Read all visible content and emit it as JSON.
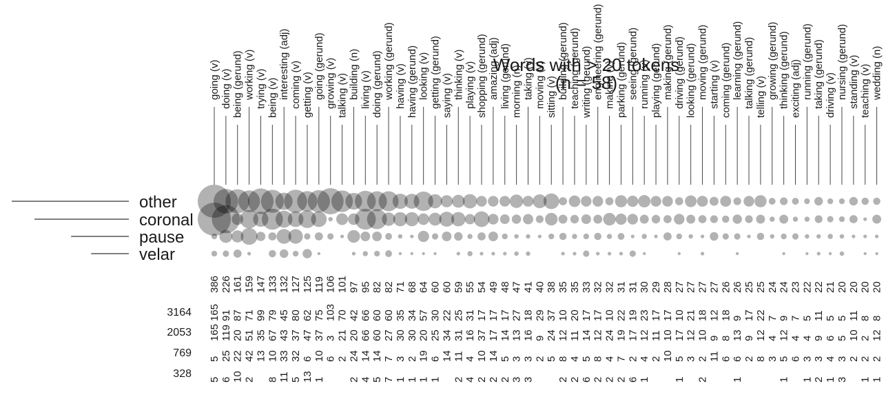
{
  "chart_data": {
    "type": "scatter",
    "subtype": "bubble-matrix",
    "title": "Words with > 20 tokens",
    "subtitle": "(n = 58)",
    "categories": [
      "going (v)",
      "doing (v)",
      "being (gerund)",
      "working (v)",
      "trying (v)",
      "being (v)",
      "interesting (adj)",
      "coming (v)",
      "getting (v)",
      "going (gerund)",
      "growing (v)",
      "talking (v)",
      "building (n)",
      "living (v)",
      "doing (gerund)",
      "working (gerund)",
      "having (v)",
      "having (gerund)",
      "looking (v)",
      "getting (gerund)",
      "saying (v)",
      "thinking (v)",
      "playing (v)",
      "shopping (gerund)",
      "amazing (adj)",
      "living (gerund)",
      "morning (n)",
      "taking (v)",
      "moving (v)",
      "sitting (v)",
      "building (gerund)",
      "teaching (gerund)",
      "writing (gerund)",
      "engineering (gerund)",
      "making (v)",
      "parking (gerund)",
      "seeing (gerund)",
      "running (v)",
      "playing (gerund)",
      "making (gerund)",
      "driving (gerund)",
      "looking (gerund)",
      "moving (gerund)",
      "starting (v)",
      "coming (gerund)",
      "learning (gerund)",
      "talking (gerund)",
      "telling (v)",
      "growing (gerund)",
      "thinking (gerund)",
      "exciting (adj)",
      "running (gerund)",
      "taking (gerund)",
      "driving (v)",
      "nursing (gerund)",
      "standing (v)",
      "teaching (v)",
      "wedding (n)"
    ],
    "totals": [
      386,
      226,
      161,
      159,
      147,
      133,
      132,
      127,
      125,
      119,
      106,
      101,
      97,
      95,
      82,
      82,
      71,
      68,
      64,
      60,
      60,
      59,
      55,
      54,
      49,
      48,
      47,
      41,
      40,
      38,
      35,
      35,
      33,
      32,
      32,
      31,
      31,
      30,
      29,
      28,
      27,
      27,
      27,
      27,
      26,
      26,
      25,
      25,
      24,
      24,
      23,
      22,
      22,
      21,
      20,
      20,
      20,
      20
    ],
    "contexts": [
      "other",
      "coronal",
      "pause",
      "velar"
    ],
    "context_totals": [
      3164,
      2053,
      769,
      328
    ],
    "series": [
      {
        "name": "other",
        "values": [
          165,
          91,
          87,
          71,
          99,
          79,
          45,
          80,
          62,
          75,
          103,
          70,
          42,
          66,
          60,
          60,
          35,
          34,
          57,
          30,
          22,
          25,
          31,
          17,
          17,
          17,
          27,
          18,
          29,
          37,
          10,
          20,
          17,
          17,
          10,
          22,
          19,
          23,
          17,
          17,
          10,
          21,
          18,
          12,
          18,
          9,
          17,
          22,
          7,
          9,
          7,
          5,
          11,
          5,
          5,
          11,
          8,
          8
        ]
      },
      {
        "name": "coronal",
        "values": [
          165,
          119,
          20,
          51,
          35,
          67,
          43,
          37,
          47,
          37,
          3,
          21,
          20,
          66,
          60,
          27,
          30,
          30,
          20,
          25,
          34,
          31,
          16,
          37,
          17,
          14,
          13,
          16,
          9,
          24,
          12,
          11,
          14,
          12,
          24,
          19,
          17,
          12,
          11,
          10,
          17,
          12,
          10,
          9,
          8,
          13,
          9,
          12,
          4,
          12,
          4,
          4,
          9,
          6,
          5,
          10,
          2,
          12
        ]
      },
      {
        "name": "pause",
        "values": [
          5,
          25,
          22,
          42,
          13,
          10,
          33,
          32,
          6,
          10,
          6,
          2,
          24,
          14,
          14,
          7,
          3,
          2,
          19,
          6,
          14,
          11,
          4,
          10,
          14,
          5,
          3,
          3,
          2,
          5,
          8,
          4,
          5,
          8,
          4,
          7,
          2,
          4,
          2,
          10,
          5,
          3,
          2,
          11,
          6,
          6,
          2,
          8,
          3,
          5,
          6,
          3,
          3,
          4,
          3,
          2,
          2,
          2
        ]
      },
      {
        "name": "velar",
        "values": [
          5,
          6,
          10,
          2,
          0,
          8,
          11,
          5,
          13,
          1,
          0,
          0,
          2,
          4,
          5,
          7,
          1,
          1,
          1,
          1,
          0,
          2,
          4,
          2,
          2,
          2,
          3,
          3,
          0,
          0,
          2,
          2,
          6,
          2,
          2,
          2,
          6,
          1,
          0,
          0,
          1,
          0,
          2,
          0,
          0,
          1,
          0,
          0,
          0,
          1,
          0,
          1,
          2,
          1,
          3,
          0,
          1,
          1
        ]
      }
    ]
  }
}
